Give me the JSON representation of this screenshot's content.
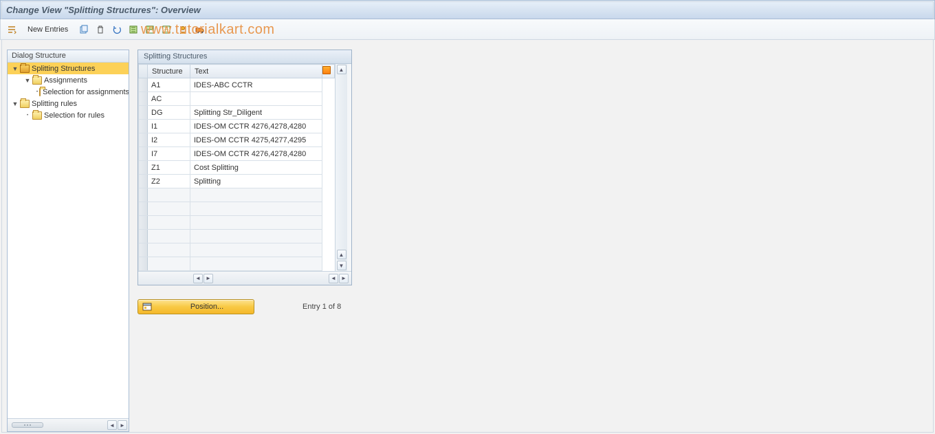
{
  "title": "Change View \"Splitting Structures\": Overview",
  "watermark": "www.tutorialkart.com",
  "toolbar": {
    "new_entries_label": "New Entries"
  },
  "tree": {
    "header": "Dialog Structure",
    "nodes": [
      {
        "label": "Splitting Structures",
        "indent": 0,
        "open": true,
        "expander": "▼",
        "selected": true
      },
      {
        "label": "Assignments",
        "indent": 1,
        "open": false,
        "expander": "▼",
        "selected": false
      },
      {
        "label": "Selection for assignments",
        "indent": 2,
        "open": false,
        "expander": "•",
        "selected": false
      },
      {
        "label": "Splitting rules",
        "indent": 0,
        "open": false,
        "expander": "▼",
        "selected": false
      },
      {
        "label": "Selection for rules",
        "indent": 1,
        "open": false,
        "expander": "•",
        "selected": false
      }
    ]
  },
  "grid": {
    "title": "Splitting Structures",
    "columns": [
      "Structure",
      "Text"
    ],
    "rows": [
      {
        "structure": "A1",
        "text": "IDES-ABC CCTR"
      },
      {
        "structure": "AC",
        "text": ""
      },
      {
        "structure": "DG",
        "text": "Splitting Str_Diligent"
      },
      {
        "structure": "I1",
        "text": "IDES-OM  CCTR 4276,4278,4280"
      },
      {
        "structure": "I2",
        "text": "IDES-OM  CCTR 4275,4277,4295"
      },
      {
        "structure": "I7",
        "text": "IDES-OM  CCTR 4276,4278,4280"
      },
      {
        "structure": "Z1",
        "text": "Cost Splitting"
      },
      {
        "structure": "Z2",
        "text": "Splitting"
      }
    ],
    "empty_rows": 6,
    "col_widths": {
      "structure": 62,
      "text": 192
    }
  },
  "footer": {
    "position_label": "Position...",
    "status": "Entry 1 of 8"
  },
  "colors": {
    "accent_yellow": "#f8c944",
    "header_grad_top": "#e8f0fa",
    "header_grad_bot": "#c8d8ec",
    "border": "#a8bcd4"
  }
}
